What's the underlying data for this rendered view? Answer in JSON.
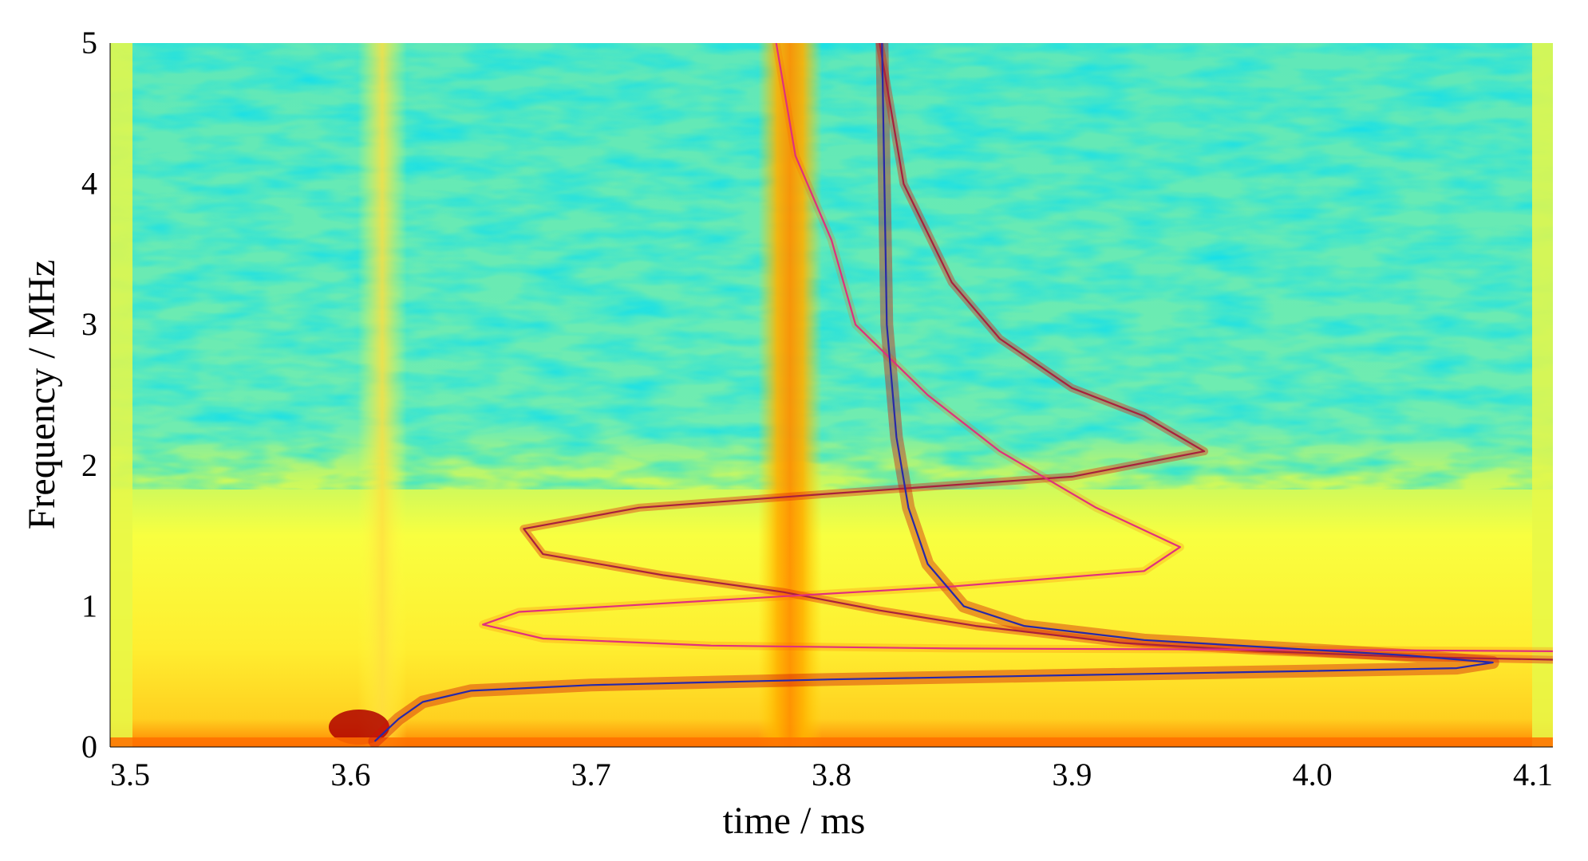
{
  "chart_data": {
    "type": "heatmap",
    "xlabel": "time / ms",
    "ylabel": "Frequency / MHz",
    "xlim": [
      3.5,
      4.1
    ],
    "ylim": [
      0,
      5
    ],
    "x_ticks": [
      "3.5",
      "3.6",
      "3.7",
      "3.8",
      "3.9",
      "4.0",
      "4.1"
    ],
    "y_ticks": [
      "0",
      "1",
      "2",
      "3",
      "4",
      "5"
    ],
    "grid": false,
    "colormap": [
      "#00c8e8",
      "#40e0c0",
      "#b0f060",
      "#ffff40",
      "#ffd000",
      "#ff8000",
      "#e01000",
      "#800000"
    ],
    "heatmap_features": [
      {
        "description": "vertical broadband stripe",
        "t": 3.78,
        "intensity": 0.72
      },
      {
        "description": "vertical broadband stripe",
        "t": 3.61,
        "intensity": 0.5
      },
      {
        "description": "low-frequency band",
        "f_range": [
          0,
          1.5
        ],
        "intensity": 0.55
      }
    ],
    "series": [
      {
        "color": "#a8203c",
        "points": [
          [
            3.82,
            5.0
          ],
          [
            3.83,
            4.0
          ],
          [
            3.85,
            3.3
          ],
          [
            3.87,
            2.9
          ],
          [
            3.9,
            2.55
          ],
          [
            3.93,
            2.35
          ],
          [
            3.955,
            2.1
          ],
          [
            3.9,
            1.92
          ],
          [
            3.8,
            1.8
          ],
          [
            3.72,
            1.7
          ],
          [
            3.672,
            1.55
          ],
          [
            3.68,
            1.37
          ],
          [
            3.73,
            1.22
          ],
          [
            3.78,
            1.1
          ],
          [
            3.82,
            0.97
          ],
          [
            3.86,
            0.86
          ],
          [
            3.92,
            0.74
          ],
          [
            3.98,
            0.68
          ],
          [
            4.04,
            0.64
          ],
          [
            4.1,
            0.62
          ]
        ]
      },
      {
        "color": "#e0307c",
        "points": [
          [
            3.777,
            5.0
          ],
          [
            3.785,
            4.2
          ],
          [
            3.8,
            3.6
          ],
          [
            3.81,
            3.0
          ],
          [
            3.84,
            2.5
          ],
          [
            3.87,
            2.1
          ],
          [
            3.91,
            1.7
          ],
          [
            3.945,
            1.42
          ],
          [
            3.93,
            1.25
          ],
          [
            3.85,
            1.14
          ],
          [
            3.75,
            1.04
          ],
          [
            3.67,
            0.96
          ],
          [
            3.655,
            0.87
          ],
          [
            3.68,
            0.77
          ],
          [
            3.75,
            0.72
          ],
          [
            3.85,
            0.7
          ],
          [
            4.0,
            0.69
          ],
          [
            4.1,
            0.68
          ]
        ]
      },
      {
        "color": "#2828a8",
        "points": [
          [
            3.821,
            5.0
          ],
          [
            3.822,
            4.0
          ],
          [
            3.823,
            3.0
          ],
          [
            3.827,
            2.2
          ],
          [
            3.832,
            1.7
          ],
          [
            3.84,
            1.3
          ],
          [
            3.855,
            1.0
          ],
          [
            3.88,
            0.86
          ],
          [
            3.93,
            0.76
          ],
          [
            3.99,
            0.7
          ],
          [
            4.04,
            0.65
          ],
          [
            4.075,
            0.6
          ],
          [
            4.06,
            0.56
          ],
          [
            4.0,
            0.54
          ],
          [
            3.9,
            0.51
          ],
          [
            3.8,
            0.48
          ],
          [
            3.7,
            0.44
          ],
          [
            3.65,
            0.4
          ],
          [
            3.63,
            0.32
          ],
          [
            3.62,
            0.2
          ],
          [
            3.61,
            0.04
          ]
        ]
      }
    ]
  }
}
